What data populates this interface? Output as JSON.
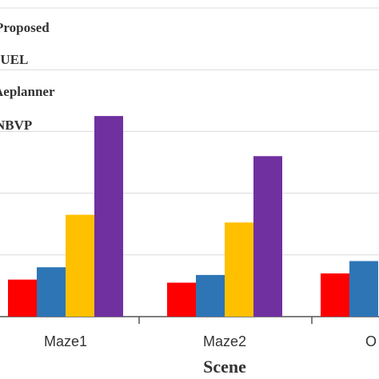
{
  "chart_data": {
    "type": "bar",
    "xlabel": "Scene",
    "ylabel": "",
    "categories": [
      "Maze1",
      "Maze2",
      "O"
    ],
    "ylim": [
      0,
      100
    ],
    "grid": true,
    "legend_position": "top-left",
    "series": [
      {
        "name": "Proposed",
        "color": "#ff0000",
        "values": [
          12,
          11,
          14
        ]
      },
      {
        "name": "FUEL",
        "color": "#2e75b6",
        "values": [
          16,
          13.5,
          18
        ]
      },
      {
        "name": "Aeplanner",
        "color": "#ffc000",
        "values": [
          33,
          30.5,
          null
        ]
      },
      {
        "name": "NBVP",
        "color": "#7030a0",
        "values": [
          65,
          52,
          null
        ]
      }
    ]
  }
}
